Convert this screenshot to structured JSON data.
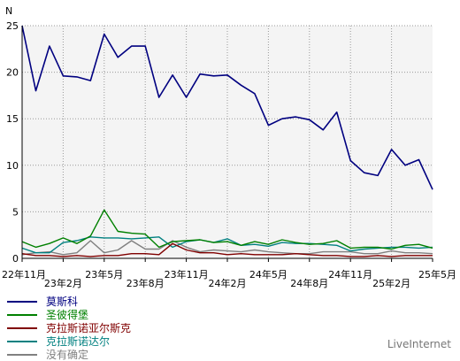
{
  "chart_data": {
    "type": "line",
    "ylabel": "N",
    "ylim": [
      0,
      25
    ],
    "yticks": [
      0,
      5,
      10,
      15,
      20,
      25
    ],
    "grid": true,
    "legend_position": "bottom-left",
    "x_count": 31,
    "x_tick_labels": [
      {
        "i": 0,
        "label": "22年11月",
        "row": 1
      },
      {
        "i": 3,
        "label": "23年2月",
        "row": 2
      },
      {
        "i": 6,
        "label": "23年5月",
        "row": 1
      },
      {
        "i": 9,
        "label": "23年8月",
        "row": 2
      },
      {
        "i": 12,
        "label": "23年11月",
        "row": 1
      },
      {
        "i": 15,
        "label": "24年2月",
        "row": 2
      },
      {
        "i": 18,
        "label": "24年5月",
        "row": 1
      },
      {
        "i": 21,
        "label": "24年8月",
        "row": 2
      },
      {
        "i": 24,
        "label": "24年11月",
        "row": 1
      },
      {
        "i": 27,
        "label": "25年2月",
        "row": 2
      },
      {
        "i": 30,
        "label": "25年5月",
        "row": 1
      }
    ],
    "series": [
      {
        "name": "莫斯科",
        "color": "#000080",
        "values": [
          25,
          18,
          22.8,
          19.6,
          19.5,
          19.1,
          24.1,
          21.6,
          22.8,
          22.8,
          17.3,
          19.7,
          17.3,
          19.8,
          19.6,
          19.7,
          18.6,
          17.7,
          14.3,
          15,
          15.2,
          14.9,
          13.8,
          15.7,
          10.5,
          9.2,
          8.9,
          11.7,
          10,
          10.6,
          7.4
        ]
      },
      {
        "name": "圣彼得堡",
        "color": "#008000",
        "values": [
          1.8,
          1.2,
          1.6,
          2.2,
          1.6,
          2.4,
          5.2,
          2.9,
          2.7,
          2.6,
          1.2,
          1.8,
          1.9,
          2,
          1.7,
          1.8,
          1.4,
          1.8,
          1.5,
          2,
          1.7,
          1.5,
          1.6,
          1.9,
          1.1,
          1.2,
          1.2,
          1,
          1.4,
          1.5,
          1.1
        ]
      },
      {
        "name": "克拉斯诺亚尔斯克",
        "color": "#800000",
        "values": [
          0.5,
          0.3,
          0.3,
          0.2,
          0.3,
          0.2,
          0.3,
          0.3,
          0.5,
          0.5,
          0.4,
          1.6,
          0.9,
          0.6,
          0.6,
          0.4,
          0.5,
          0.4,
          0.4,
          0.4,
          0.5,
          0.4,
          0.3,
          0.3,
          0.2,
          0.2,
          0.3,
          0.2,
          0.3,
          0.3,
          0.3
        ]
      },
      {
        "name": "克拉斯诺达尔",
        "color": "#008080",
        "values": [
          1.1,
          0.6,
          0.6,
          1.7,
          1.9,
          2.3,
          2.2,
          2.2,
          2.1,
          2.2,
          2.3,
          1.2,
          1.8,
          2,
          1.7,
          2.1,
          1.4,
          1.5,
          1.3,
          1.7,
          1.6,
          1.6,
          1.5,
          1.4,
          0.8,
          1,
          1.1,
          1.2,
          1.2,
          1.1,
          1.2
        ]
      },
      {
        "name": "没有确定",
        "color": "#808080",
        "values": [
          0.4,
          0.6,
          0.7,
          0.4,
          0.6,
          1.9,
          0.6,
          0.9,
          1.9,
          1,
          1,
          1.9,
          1.2,
          0.7,
          0.9,
          0.8,
          0.7,
          0.9,
          0.7,
          0.6,
          0.5,
          0.5,
          0.7,
          0.7,
          0.7,
          0.5,
          0.5,
          0.8,
          0.6,
          0.6,
          0.5
        ]
      }
    ]
  },
  "brand": "LiveInternet"
}
